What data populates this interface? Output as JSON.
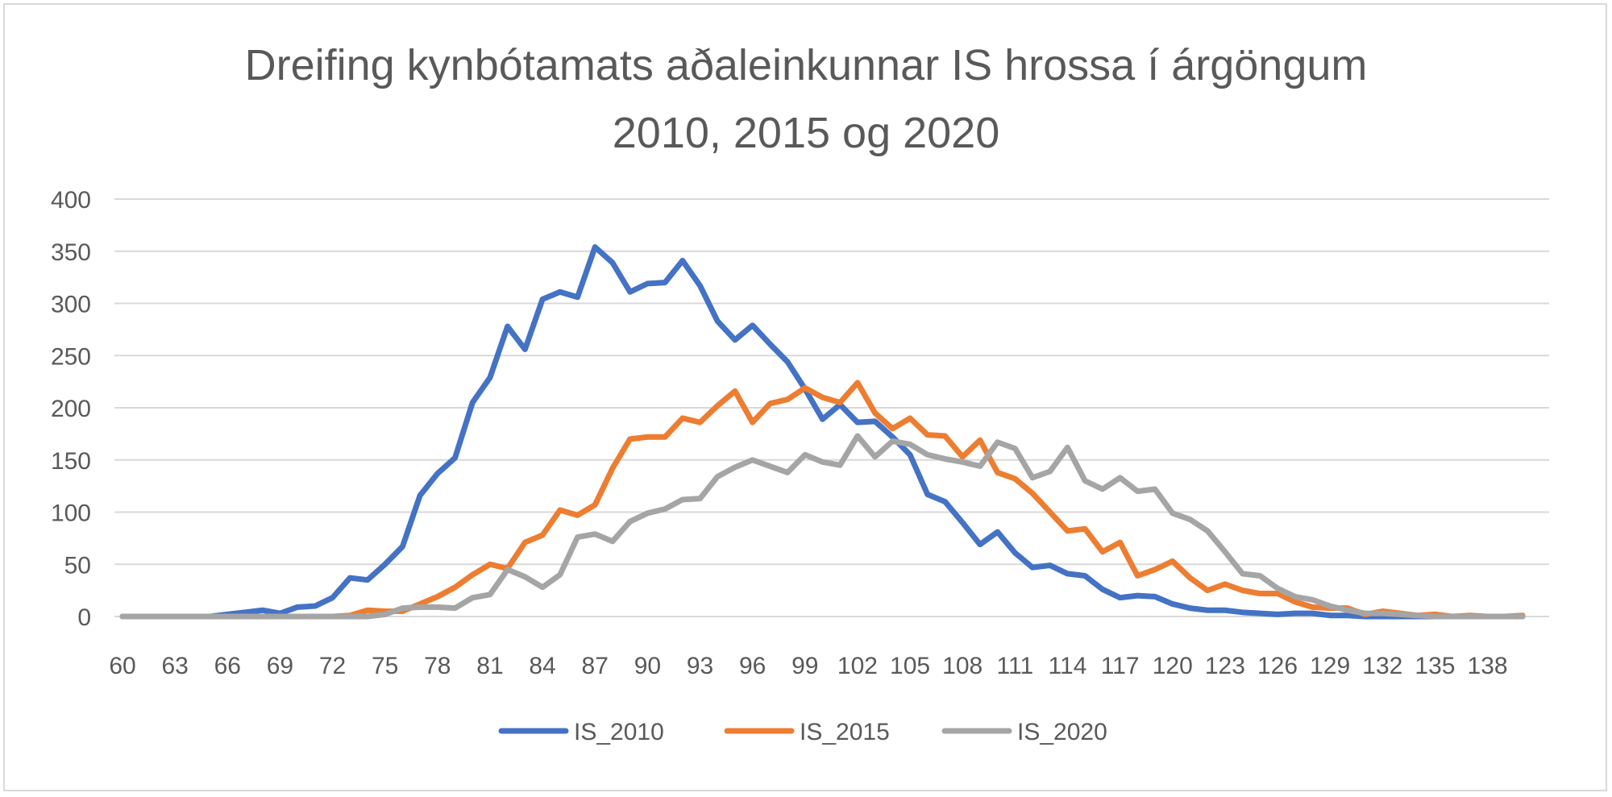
{
  "chart_data": {
    "type": "line",
    "title_line1": "Dreifing kynbótamats aðaleinkunnar IS hrossa í árgöngum",
    "title_line2": "2010, 2015 og 2020",
    "xlabel": "",
    "ylabel": "",
    "x_start": 60,
    "x_end": 140,
    "x_tick_step": 3,
    "ylim": [
      0,
      400
    ],
    "y_ticks": [
      0,
      50,
      100,
      150,
      200,
      250,
      300,
      350,
      400
    ],
    "grid": true,
    "legend_position": "bottom",
    "series": [
      {
        "name": "IS_2010",
        "color": "#4472C4",
        "values": [
          0,
          0,
          0,
          0,
          0,
          0,
          2,
          4,
          6,
          3,
          9,
          10,
          18,
          37,
          35,
          50,
          67,
          116,
          137,
          152,
          205,
          229,
          278,
          256,
          304,
          311,
          306,
          354,
          339,
          311,
          319,
          320,
          341,
          317,
          283,
          265,
          279,
          261,
          244,
          218,
          189,
          203,
          186,
          187,
          172,
          155,
          117,
          110,
          90,
          69,
          81,
          61,
          47,
          49,
          41,
          39,
          26,
          18,
          20,
          19,
          12,
          8,
          6,
          6,
          4,
          3,
          2,
          3,
          3,
          1,
          1,
          0,
          0,
          0,
          0,
          0,
          0,
          0,
          0,
          0,
          0
        ]
      },
      {
        "name": "IS_2015",
        "color": "#ED7D31",
        "values": [
          0,
          0,
          0,
          0,
          0,
          0,
          0,
          0,
          0,
          0,
          0,
          0,
          0,
          1,
          6,
          5,
          5,
          12,
          19,
          28,
          40,
          50,
          46,
          71,
          78,
          102,
          97,
          107,
          142,
          170,
          172,
          172,
          190,
          186,
          202,
          216,
          186,
          204,
          208,
          219,
          210,
          205,
          224,
          195,
          180,
          190,
          174,
          173,
          153,
          169,
          138,
          132,
          118,
          100,
          82,
          84,
          62,
          71,
          39,
          45,
          53,
          37,
          25,
          31,
          25,
          22,
          22,
          14,
          9,
          8,
          8,
          2,
          5,
          3,
          1,
          2,
          0,
          1,
          0,
          0,
          1
        ]
      },
      {
        "name": "IS_2020",
        "color": "#A5A5A5",
        "values": [
          0,
          0,
          0,
          0,
          0,
          0,
          0,
          0,
          0,
          0,
          0,
          0,
          0,
          0,
          0,
          2,
          8,
          9,
          9,
          8,
          18,
          21,
          45,
          38,
          28,
          40,
          76,
          79,
          72,
          91,
          99,
          103,
          112,
          113,
          134,
          143,
          150,
          144,
          138,
          155,
          148,
          145,
          173,
          153,
          168,
          165,
          155,
          151,
          148,
          144,
          167,
          161,
          133,
          139,
          162,
          130,
          122,
          133,
          120,
          122,
          99,
          93,
          82,
          62,
          41,
          39,
          27,
          19,
          16,
          10,
          6,
          3,
          3,
          2,
          1,
          0,
          0,
          0,
          0,
          0,
          0
        ]
      }
    ]
  }
}
